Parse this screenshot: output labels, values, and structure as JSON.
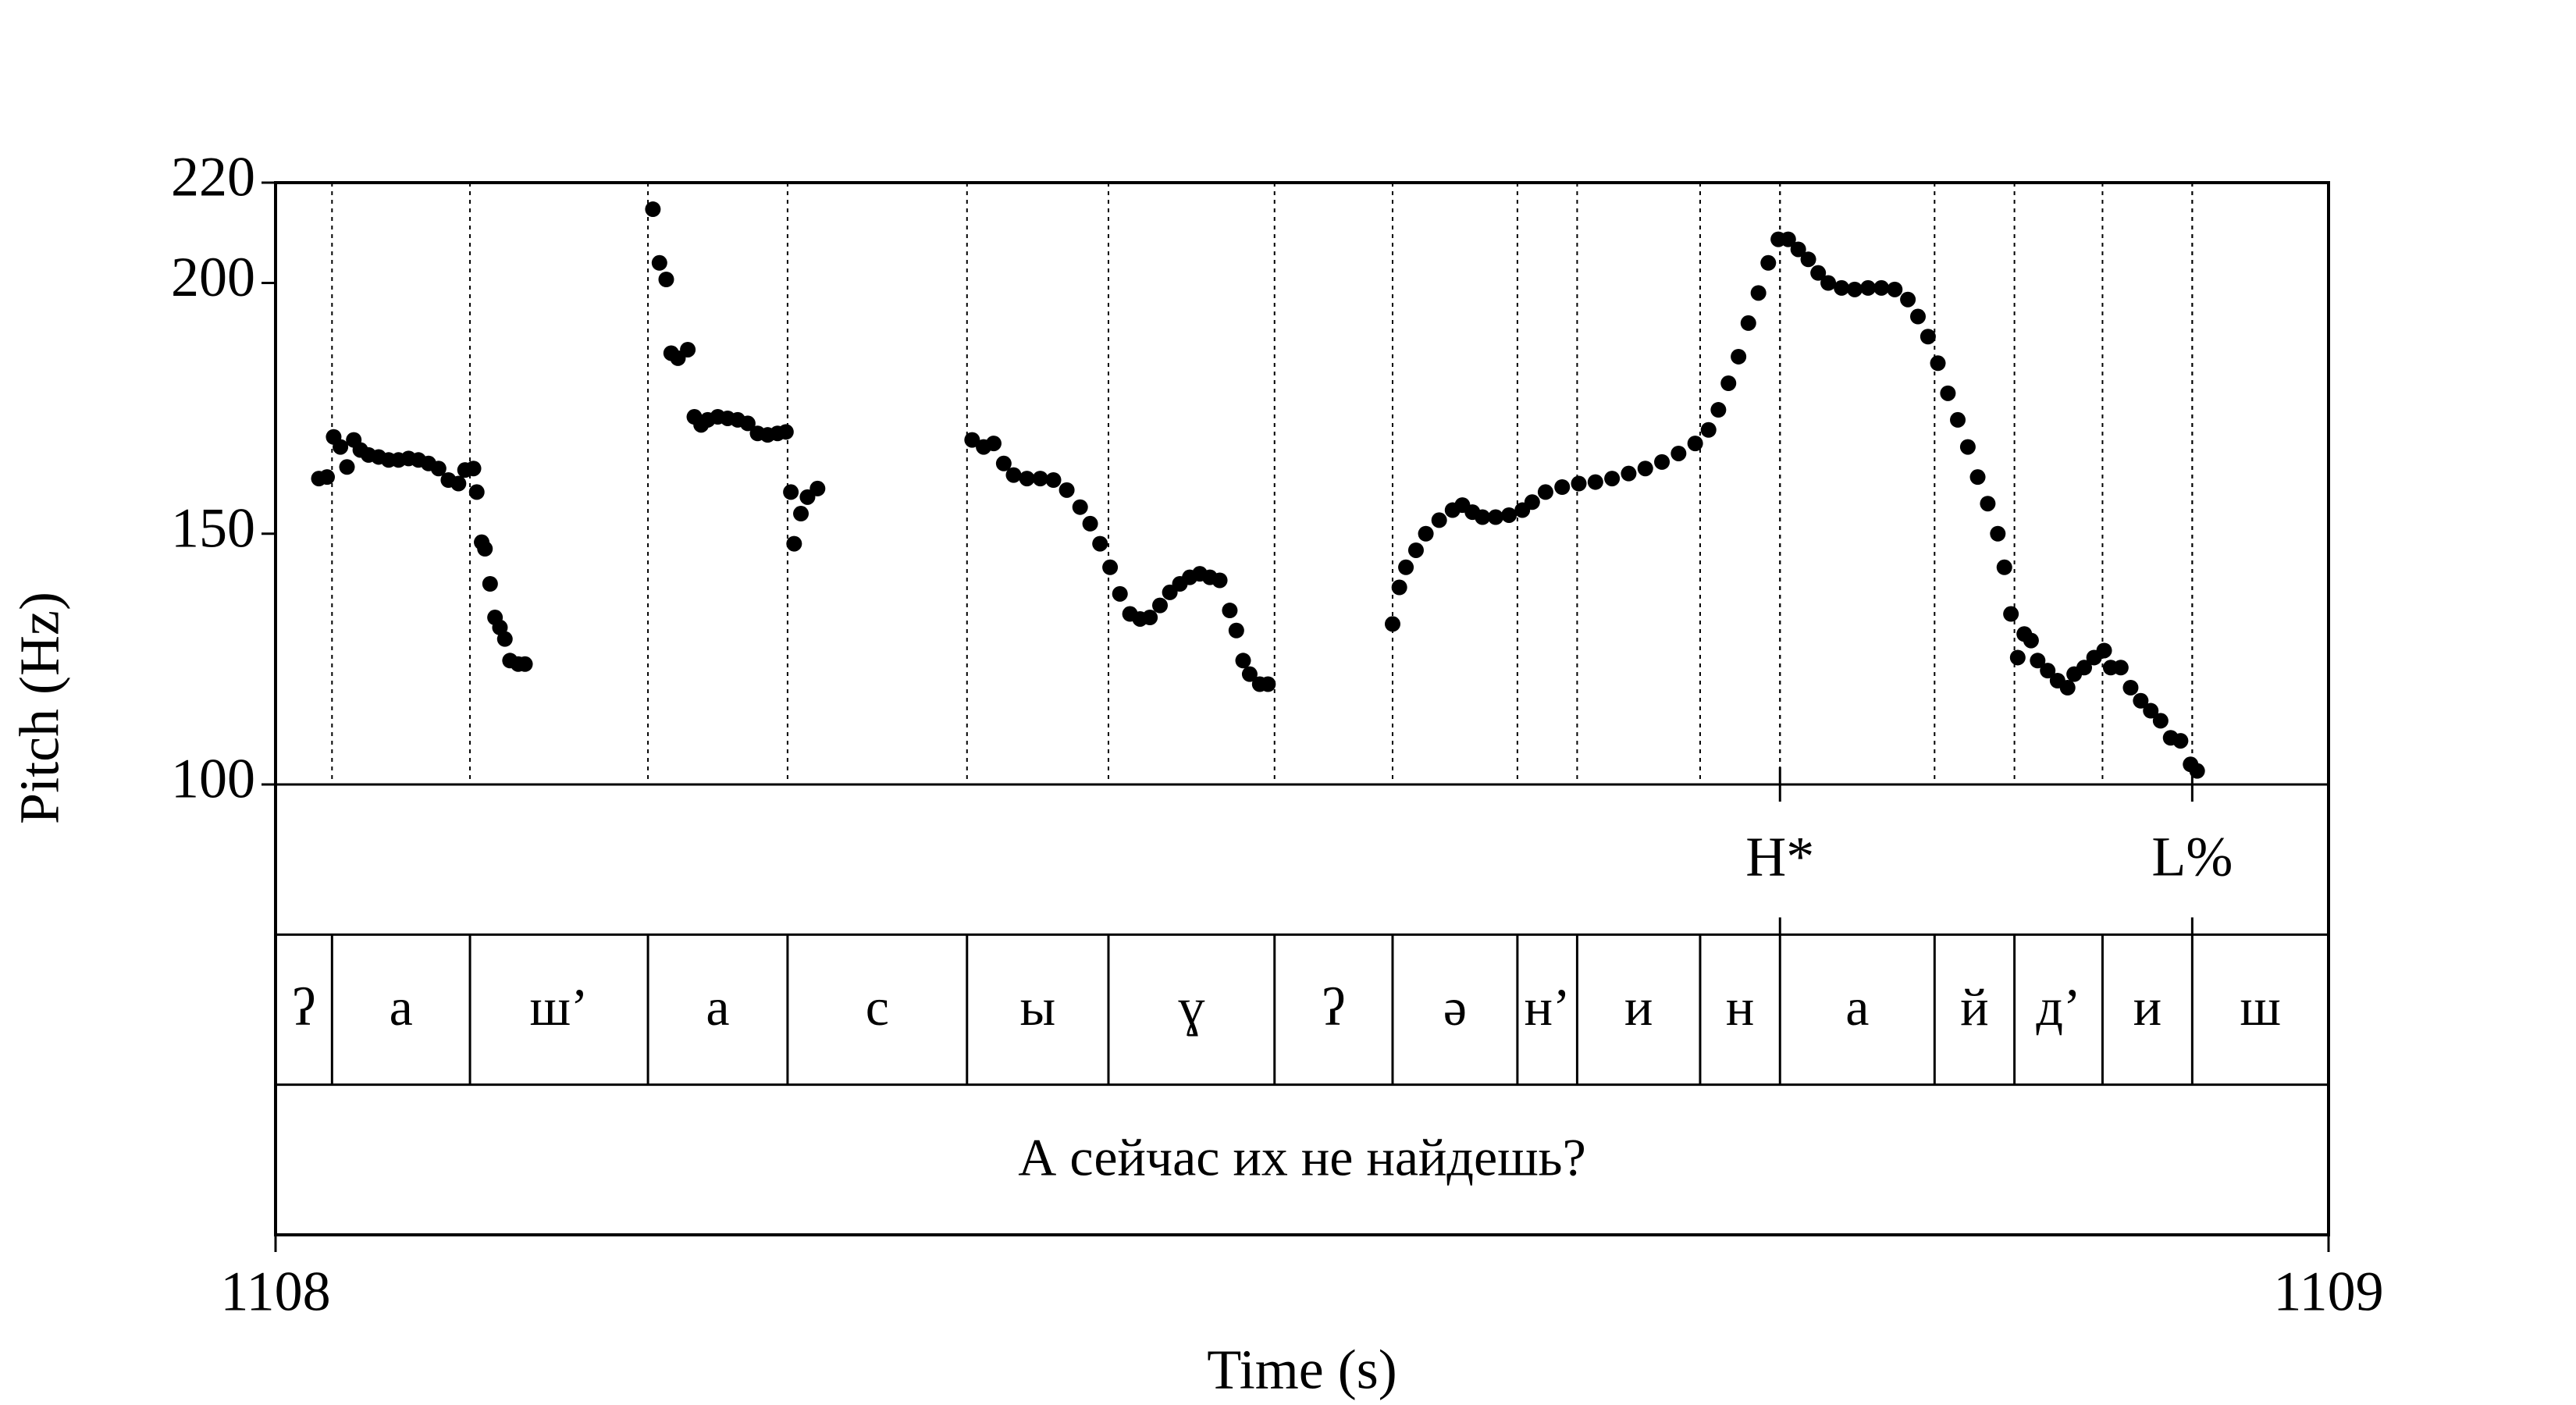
{
  "chart_data": {
    "type": "scatter",
    "xlabel": "Time (s)",
    "ylabel": "Pitch (Hz)",
    "color": "#000000",
    "xlim": [
      1108,
      1109
    ],
    "xticks": [
      1108,
      1109
    ],
    "ylim": [
      100,
      220
    ],
    "yticks": [
      100,
      150,
      200,
      220
    ],
    "x": [
      1108.0211,
      1108.0251,
      1108.0283,
      1108.0316,
      1108.0348,
      1108.0381,
      1108.0413,
      1108.0453,
      1108.0502,
      1108.0551,
      1108.0599,
      1108.0648,
      1108.0696,
      1108.0745,
      1108.0794,
      1108.0842,
      1108.0891,
      1108.0923,
      1108.0964,
      1108.098,
      1108.1004,
      1108.102,
      1108.1045,
      1108.1069,
      1108.1093,
      1108.1117,
      1108.1142,
      1108.1182,
      1108.1215,
      1108.1838,
      1108.187,
      1108.1903,
      1108.1927,
      1108.196,
      1108.2008,
      1108.204,
      1108.2073,
      1108.2105,
      1108.2154,
      1108.2202,
      1108.2251,
      1108.23,
      1108.2348,
      1108.2397,
      1108.2445,
      1108.2486,
      1108.251,
      1108.2526,
      1108.2559,
      1108.2591,
      1108.264,
      1108.3393,
      1108.3449,
      1108.3498,
      1108.3547,
      1108.3595,
      1108.366,
      1108.3725,
      1108.3789,
      1108.3854,
      1108.3919,
      1108.3968,
      1108.4016,
      1108.4065,
      1108.4113,
      1108.4162,
      1108.4211,
      1108.4259,
      1108.4308,
      1108.4356,
      1108.4405,
      1108.4453,
      1108.4502,
      1108.4551,
      1108.4599,
      1108.4648,
      1108.468,
      1108.4713,
      1108.4745,
      1108.4794,
      1108.4834,
      1108.5441,
      1108.5474,
      1108.5506,
      1108.5555,
      1108.5603,
      1108.5668,
      1108.5733,
      1108.5781,
      1108.583,
      1108.5879,
      1108.5943,
      1108.6008,
      1108.6073,
      1108.6121,
      1108.6186,
      1108.6267,
      1108.6348,
      1108.6429,
      1108.651,
      1108.6591,
      1108.6672,
      1108.6753,
      1108.6834,
      1108.6915,
      1108.698,
      1108.7028,
      1108.7077,
      1108.7126,
      1108.7174,
      1108.7223,
      1108.7271,
      1108.732,
      1108.7368,
      1108.7417,
      1108.7466,
      1108.7514,
      1108.7563,
      1108.7628,
      1108.7692,
      1108.7757,
      1108.7822,
      1108.7887,
      1108.7951,
      1108.8,
      1108.8049,
      1108.8097,
      1108.8146,
      1108.8194,
      1108.8243,
      1108.8291,
      1108.834,
      1108.8389,
      1108.8421,
      1108.8453,
      1108.8486,
      1108.8518,
      1108.8551,
      1108.8583,
      1108.8632,
      1108.868,
      1108.8729,
      1108.8761,
      1108.881,
      1108.8858,
      1108.8907,
      1108.8939,
      1108.8988,
      1108.9036,
      1108.9085,
      1108.9134,
      1108.9182,
      1108.9231,
      1108.9279,
      1108.9328,
      1108.936
    ],
    "y": [
      161.0,
      161.3,
      169.3,
      167.3,
      163.3,
      168.7,
      166.7,
      165.7,
      165.3,
      164.7,
      164.7,
      165.0,
      164.7,
      164.0,
      163.0,
      160.7,
      160.0,
      162.7,
      163.0,
      158.3,
      148.3,
      147.0,
      140.0,
      133.3,
      131.3,
      129.0,
      124.7,
      124.0,
      124.0,
      214.7,
      204.0,
      200.7,
      186.0,
      185.0,
      186.7,
      173.3,
      171.7,
      172.7,
      173.3,
      173.0,
      172.7,
      172.0,
      170.0,
      169.7,
      170.0,
      170.3,
      158.3,
      148.0,
      154.0,
      157.3,
      159.0,
      168.7,
      167.3,
      168.0,
      164.0,
      161.7,
      161.0,
      161.0,
      160.7,
      158.7,
      155.3,
      152.0,
      148.0,
      143.3,
      138.0,
      134.0,
      133.0,
      133.3,
      135.7,
      138.3,
      140.0,
      141.3,
      142.0,
      141.3,
      140.7,
      134.7,
      130.7,
      124.7,
      122.0,
      120.0,
      120.0,
      132.0,
      139.3,
      143.3,
      146.7,
      150.0,
      152.7,
      154.7,
      155.7,
      154.3,
      153.3,
      153.3,
      153.7,
      154.7,
      156.3,
      158.3,
      159.3,
      160.0,
      160.3,
      161.0,
      162.0,
      163.0,
      164.3,
      166.0,
      168.0,
      170.7,
      174.7,
      180.0,
      185.3,
      192.0,
      198.0,
      204.0,
      208.7,
      208.7,
      206.7,
      204.7,
      202.0,
      200.0,
      199.0,
      198.7,
      199.0,
      199.0,
      198.7,
      196.7,
      193.3,
      189.3,
      184.0,
      178.0,
      172.7,
      167.3,
      161.3,
      156.0,
      150.0,
      143.3,
      134.0,
      125.3,
      130.0,
      128.7,
      124.7,
      122.7,
      120.7,
      119.3,
      122.0,
      123.3,
      125.3,
      126.7,
      123.3,
      123.3,
      119.3,
      116.7,
      114.7,
      112.7,
      109.3,
      108.7,
      104.0,
      102.7
    ],
    "tiers": [
      {
        "type": "points",
        "times": [
          1108.7328,
          1108.9336
        ],
        "labels": [
          "H*",
          "L%"
        ]
      },
      {
        "type": "intervals",
        "boundaries": [
          1108,
          1108.0275,
          1108.0947,
          1108.1814,
          1108.2494,
          1108.3368,
          1108.4057,
          1108.4866,
          1108.5441,
          1108.6049,
          1108.634,
          1108.6939,
          1108.7328,
          1108.8081,
          1108.847,
          1108.8899,
          1108.9336,
          1109
        ],
        "labels": [
          "ʔ",
          "а",
          "ш’",
          "а",
          "с",
          "ы",
          "ɣ",
          "ʔ",
          "ə",
          "н’",
          "и",
          "н",
          "а",
          "й",
          "д’",
          "и",
          "ш"
        ]
      },
      {
        "type": "intervals",
        "boundaries": [
          1108,
          1109
        ],
        "labels": [
          "А сейчас их не найдешь?"
        ]
      }
    ]
  }
}
